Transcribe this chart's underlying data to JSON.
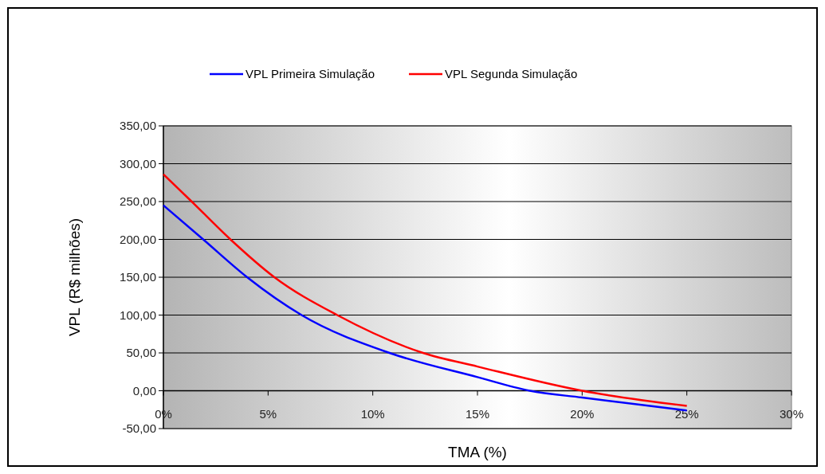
{
  "chart_data": {
    "type": "line",
    "xlabel": "TMA (%)",
    "ylabel": "VPL (R$ milhões)",
    "xlim": [
      0,
      30
    ],
    "xticks": [
      {
        "value": 0,
        "label": "0%"
      },
      {
        "value": 5,
        "label": "5%"
      },
      {
        "value": 10,
        "label": "10%"
      },
      {
        "value": 15,
        "label": "15%"
      },
      {
        "value": 20,
        "label": "20%"
      },
      {
        "value": 25,
        "label": "25%"
      },
      {
        "value": 30,
        "label": "30%"
      }
    ],
    "ylim": [
      -50,
      350
    ],
    "yticks": [
      {
        "value": -50,
        "label": "-50,00"
      },
      {
        "value": 0,
        "label": "0,00"
      },
      {
        "value": 50,
        "label": "50,00"
      },
      {
        "value": 100,
        "label": "100,00"
      },
      {
        "value": 150,
        "label": "150,00"
      },
      {
        "value": 200,
        "label": "200,00"
      },
      {
        "value": 250,
        "label": "250,00"
      },
      {
        "value": 300,
        "label": "300,00"
      },
      {
        "value": 350,
        "label": "350,00"
      }
    ],
    "grid": "y",
    "legend": "top",
    "marker": "none",
    "line_style": "solid",
    "series": [
      {
        "name": "VPL Primeira Simulação",
        "color": "#0000ff",
        "x": [
          0,
          1.9,
          4,
          6.6,
          10.8,
          15,
          17.5,
          20,
          25
        ],
        "values": [
          245,
          200,
          150,
          100,
          50,
          18,
          0,
          -9,
          -26
        ]
      },
      {
        "name": "VPL Segunda Simulação",
        "color": "#ff0000",
        "x": [
          0,
          1.35,
          3.2,
          5.3,
          8.3,
          12.4,
          15,
          20,
          25
        ],
        "values": [
          286,
          250,
          200,
          150,
          100,
          50,
          32,
          0,
          -20
        ]
      }
    ]
  }
}
